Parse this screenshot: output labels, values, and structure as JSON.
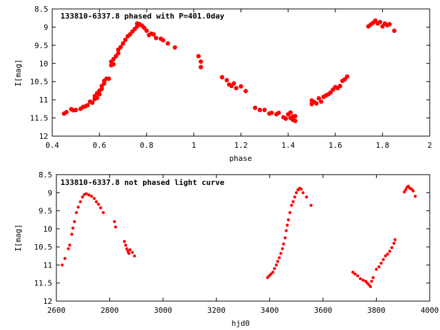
{
  "chart_data": [
    {
      "type": "scatter",
      "title": "133810-6337.8 phased with P=401.0day",
      "xlabel": "phase",
      "ylabel": "I[mag]",
      "xlim": [
        0.4,
        2.0
      ],
      "ylim": [
        12.0,
        8.5
      ],
      "y_inverted": true,
      "xticks": [
        0.4,
        0.6,
        0.8,
        1.0,
        1.2,
        1.4,
        1.6,
        1.8,
        2.0
      ],
      "xtick_labels": [
        "0.4",
        "0.6",
        "0.8",
        "1",
        "1.2",
        "1.4",
        "1.6",
        "1.8",
        "2"
      ],
      "yticks": [
        8.5,
        9.0,
        9.5,
        10.0,
        10.5,
        11.0,
        11.5,
        12.0
      ],
      "ytick_labels": [
        "8.5",
        "9",
        "9.5",
        "10",
        "10.5",
        "11",
        "11.5",
        "12"
      ],
      "marker_color": "#ff0000",
      "grid": false,
      "points": [
        [
          0.45,
          11.38
        ],
        [
          0.46,
          11.34
        ],
        [
          0.48,
          11.26
        ],
        [
          0.49,
          11.29
        ],
        [
          0.5,
          11.28
        ],
        [
          0.52,
          11.25
        ],
        [
          0.53,
          11.2
        ],
        [
          0.54,
          11.18
        ],
        [
          0.55,
          11.15
        ],
        [
          0.56,
          11.05
        ],
        [
          0.57,
          11.08
        ],
        [
          0.58,
          10.98
        ],
        [
          0.58,
          10.9
        ],
        [
          0.59,
          10.95
        ],
        [
          0.59,
          10.82
        ],
        [
          0.6,
          10.85
        ],
        [
          0.6,
          10.75
        ],
        [
          0.61,
          10.7
        ],
        [
          0.61,
          10.62
        ],
        [
          0.62,
          10.55
        ],
        [
          0.62,
          10.48
        ],
        [
          0.63,
          10.42
        ],
        [
          0.64,
          10.42
        ],
        [
          0.65,
          10.05
        ],
        [
          0.65,
          9.95
        ],
        [
          0.66,
          9.88
        ],
        [
          0.66,
          10.02
        ],
        [
          0.67,
          9.8
        ],
        [
          0.68,
          9.72
        ],
        [
          0.68,
          9.62
        ],
        [
          0.69,
          9.55
        ],
        [
          0.7,
          9.45
        ],
        [
          0.71,
          9.35
        ],
        [
          0.72,
          9.25
        ],
        [
          0.73,
          9.2
        ],
        [
          0.74,
          9.12
        ],
        [
          0.75,
          9.05
        ],
        [
          0.76,
          8.98
        ],
        [
          0.76,
          8.9
        ],
        [
          0.77,
          8.92
        ],
        [
          0.78,
          8.96
        ],
        [
          0.79,
          9.02
        ],
        [
          0.8,
          9.1
        ],
        [
          0.81,
          9.22
        ],
        [
          0.82,
          9.18
        ],
        [
          0.83,
          9.2
        ],
        [
          0.84,
          9.3
        ],
        [
          0.86,
          9.32
        ],
        [
          0.87,
          9.36
        ],
        [
          0.89,
          9.45
        ],
        [
          0.92,
          9.56
        ],
        [
          1.02,
          9.8
        ],
        [
          1.03,
          9.95
        ],
        [
          1.03,
          10.1
        ],
        [
          1.12,
          10.38
        ],
        [
          1.14,
          10.46
        ],
        [
          1.15,
          10.58
        ],
        [
          1.16,
          10.62
        ],
        [
          1.17,
          10.55
        ],
        [
          1.18,
          10.68
        ],
        [
          1.2,
          10.63
        ],
        [
          1.22,
          10.76
        ],
        [
          1.26,
          11.22
        ],
        [
          1.28,
          11.28
        ],
        [
          1.3,
          11.28
        ],
        [
          1.32,
          11.38
        ],
        [
          1.33,
          11.36
        ],
        [
          1.35,
          11.4
        ],
        [
          1.36,
          11.36
        ],
        [
          1.38,
          11.48
        ],
        [
          1.39,
          11.52
        ],
        [
          1.4,
          11.4
        ],
        [
          1.41,
          11.35
        ],
        [
          1.41,
          11.5
        ],
        [
          1.42,
          11.46
        ],
        [
          1.42,
          11.55
        ],
        [
          1.43,
          11.45
        ],
        [
          1.43,
          11.58
        ],
        [
          1.5,
          11.02
        ],
        [
          1.5,
          11.12
        ],
        [
          1.51,
          11.06
        ],
        [
          1.52,
          11.1
        ],
        [
          1.53,
          10.96
        ],
        [
          1.54,
          11.05
        ],
        [
          1.55,
          10.92
        ],
        [
          1.56,
          10.88
        ],
        [
          1.57,
          10.85
        ],
        [
          1.58,
          10.8
        ],
        [
          1.59,
          10.72
        ],
        [
          1.6,
          10.65
        ],
        [
          1.61,
          10.68
        ],
        [
          1.62,
          10.62
        ],
        [
          1.63,
          10.48
        ],
        [
          1.64,
          10.44
        ],
        [
          1.65,
          10.36
        ],
        [
          1.74,
          8.98
        ],
        [
          1.75,
          8.93
        ],
        [
          1.76,
          8.88
        ],
        [
          1.77,
          8.82
        ],
        [
          1.78,
          8.9
        ],
        [
          1.79,
          8.86
        ],
        [
          1.8,
          8.98
        ],
        [
          1.81,
          8.9
        ],
        [
          1.82,
          8.95
        ],
        [
          1.83,
          8.92
        ],
        [
          1.85,
          9.1
        ]
      ]
    },
    {
      "type": "scatter",
      "title": "133810-6337.8 not phased light curve",
      "xlabel": "hjd0",
      "ylabel": "I[mag]",
      "xlim": [
        2600,
        4000
      ],
      "ylim": [
        12.0,
        8.5
      ],
      "y_inverted": true,
      "xticks": [
        2600,
        2800,
        3000,
        3200,
        3400,
        3600,
        3800,
        4000
      ],
      "xtick_labels": [
        "2600",
        "2800",
        "3000",
        "3200",
        "3400",
        "3600",
        "3800",
        "4000"
      ],
      "yticks": [
        8.5,
        9.0,
        9.5,
        10.0,
        10.5,
        11.0,
        11.5,
        12.0
      ],
      "ytick_labels": [
        "8.5",
        "9",
        "9.5",
        "10",
        "10.5",
        "11",
        "11.5",
        "12"
      ],
      "marker_color": "#ff0000",
      "grid": false,
      "points": [
        [
          2622,
          11.0
        ],
        [
          2632,
          10.82
        ],
        [
          2645,
          10.55
        ],
        [
          2650,
          10.45
        ],
        [
          2658,
          10.15
        ],
        [
          2662,
          9.98
        ],
        [
          2668,
          9.8
        ],
        [
          2675,
          9.55
        ],
        [
          2682,
          9.4
        ],
        [
          2690,
          9.25
        ],
        [
          2698,
          9.12
        ],
        [
          2705,
          9.05
        ],
        [
          2712,
          9.03
        ],
        [
          2722,
          9.06
        ],
        [
          2732,
          9.1
        ],
        [
          2742,
          9.16
        ],
        [
          2750,
          9.25
        ],
        [
          2758,
          9.32
        ],
        [
          2766,
          9.42
        ],
        [
          2776,
          9.55
        ],
        [
          2818,
          9.8
        ],
        [
          2822,
          9.95
        ],
        [
          2855,
          10.35
        ],
        [
          2860,
          10.45
        ],
        [
          2864,
          10.55
        ],
        [
          2868,
          10.62
        ],
        [
          2872,
          10.68
        ],
        [
          2876,
          10.58
        ],
        [
          2885,
          10.65
        ],
        [
          2893,
          10.75
        ],
        [
          3392,
          11.35
        ],
        [
          3398,
          11.3
        ],
        [
          3405,
          11.25
        ],
        [
          3412,
          11.2
        ],
        [
          3418,
          11.1
        ],
        [
          3425,
          11.0
        ],
        [
          3430,
          10.9
        ],
        [
          3436,
          10.8
        ],
        [
          3442,
          10.68
        ],
        [
          3448,
          10.55
        ],
        [
          3452,
          10.42
        ],
        [
          3458,
          10.25
        ],
        [
          3462,
          10.05
        ],
        [
          3466,
          9.9
        ],
        [
          3470,
          9.75
        ],
        [
          3476,
          9.55
        ],
        [
          3482,
          9.35
        ],
        [
          3488,
          9.25
        ],
        [
          3494,
          9.12
        ],
        [
          3500,
          9.0
        ],
        [
          3506,
          8.92
        ],
        [
          3512,
          8.88
        ],
        [
          3518,
          8.9
        ],
        [
          3525,
          9.0
        ],
        [
          3538,
          9.12
        ],
        [
          3555,
          9.35
        ],
        [
          3712,
          11.2
        ],
        [
          3720,
          11.25
        ],
        [
          3730,
          11.3
        ],
        [
          3740,
          11.38
        ],
        [
          3750,
          11.42
        ],
        [
          3760,
          11.45
        ],
        [
          3766,
          11.5
        ],
        [
          3772,
          11.55
        ],
        [
          3778,
          11.6
        ],
        [
          3782,
          11.45
        ],
        [
          3788,
          11.35
        ],
        [
          3800,
          11.12
        ],
        [
          3810,
          11.05
        ],
        [
          3818,
          10.95
        ],
        [
          3826,
          10.85
        ],
        [
          3834,
          10.75
        ],
        [
          3842,
          10.7
        ],
        [
          3850,
          10.62
        ],
        [
          3858,
          10.52
        ],
        [
          3866,
          10.4
        ],
        [
          3870,
          10.3
        ],
        [
          3905,
          8.98
        ],
        [
          3910,
          8.92
        ],
        [
          3915,
          8.85
        ],
        [
          3920,
          8.82
        ],
        [
          3926,
          8.88
        ],
        [
          3932,
          8.9
        ],
        [
          3938,
          8.95
        ],
        [
          3946,
          9.1
        ]
      ]
    }
  ]
}
